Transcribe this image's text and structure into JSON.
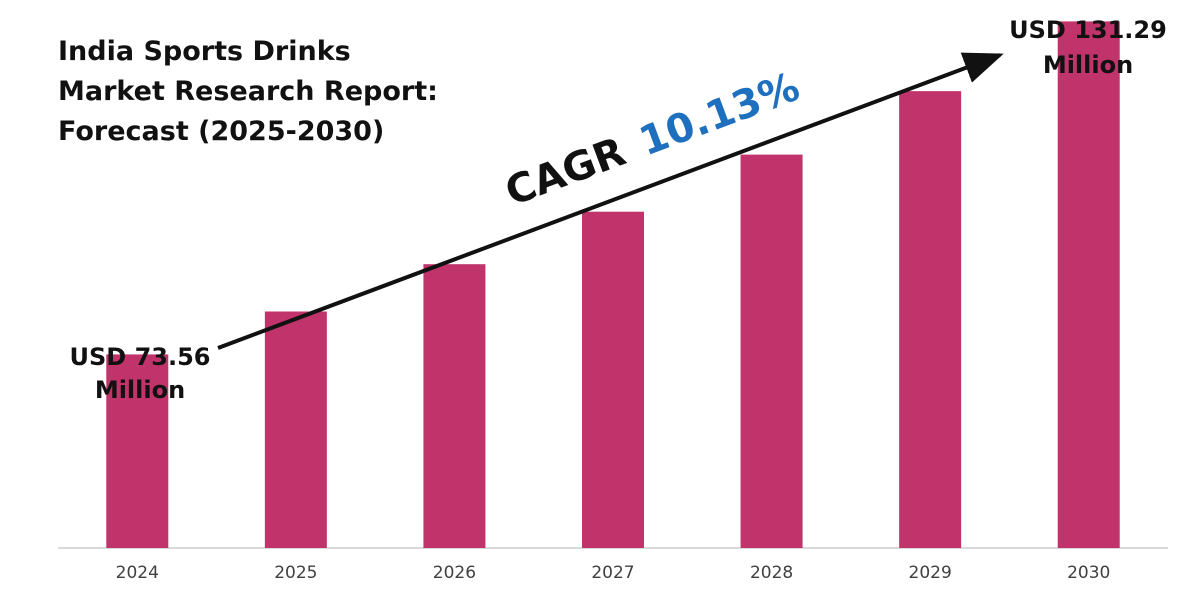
{
  "colors": {
    "bar": "#c0336b",
    "cagr_value": "#1f6fbf",
    "text": "#111111",
    "axis": "#d9d9d9",
    "arrow": "#111111"
  },
  "chart_data": {
    "type": "bar",
    "title": "India Sports Drinks Market Research Report: Forecast (2025-2030)",
    "title_lines": [
      "India Sports Drinks",
      "Market Research Report:",
      "Forecast (2025-2030)"
    ],
    "categories": [
      "2024",
      "2025",
      "2026",
      "2027",
      "2028",
      "2029",
      "2030"
    ],
    "values": [
      73.56,
      81.0,
      89.2,
      98.3,
      108.2,
      119.2,
      131.29
    ],
    "unit": "USD Million",
    "xlabel": "",
    "ylabel": "",
    "ylim": [
      40,
      135
    ],
    "grid": false,
    "legend": "none",
    "annotations": {
      "start_label": [
        "USD 73.56",
        "Million"
      ],
      "end_label": [
        "USD 131.29",
        "Million"
      ],
      "cagr_prefix": "CAGR",
      "cagr_value": "10.13%"
    }
  }
}
